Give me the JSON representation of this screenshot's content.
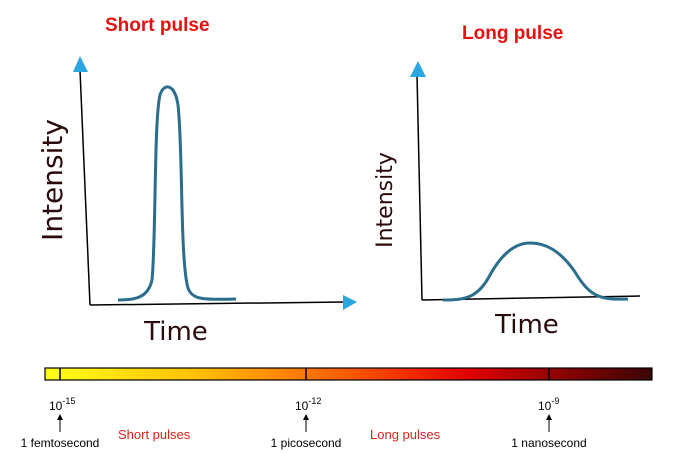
{
  "panels": [
    {
      "title": "Short pulse",
      "y_label": "Intensity",
      "x_label": "Time"
    },
    {
      "title": "Long pulse",
      "y_label": "Intensity",
      "x_label": "Time"
    }
  ],
  "scale": {
    "ticks": [
      {
        "base": "10",
        "exponent": "-15",
        "name": "1 femtosecond"
      },
      {
        "base": "10",
        "exponent": "-12",
        "name": "1 picosecond"
      },
      {
        "base": "10",
        "exponent": "-9",
        "name": "1 nanosecond"
      }
    ],
    "ranges": [
      "Short pulses",
      "Long pulses"
    ]
  }
}
